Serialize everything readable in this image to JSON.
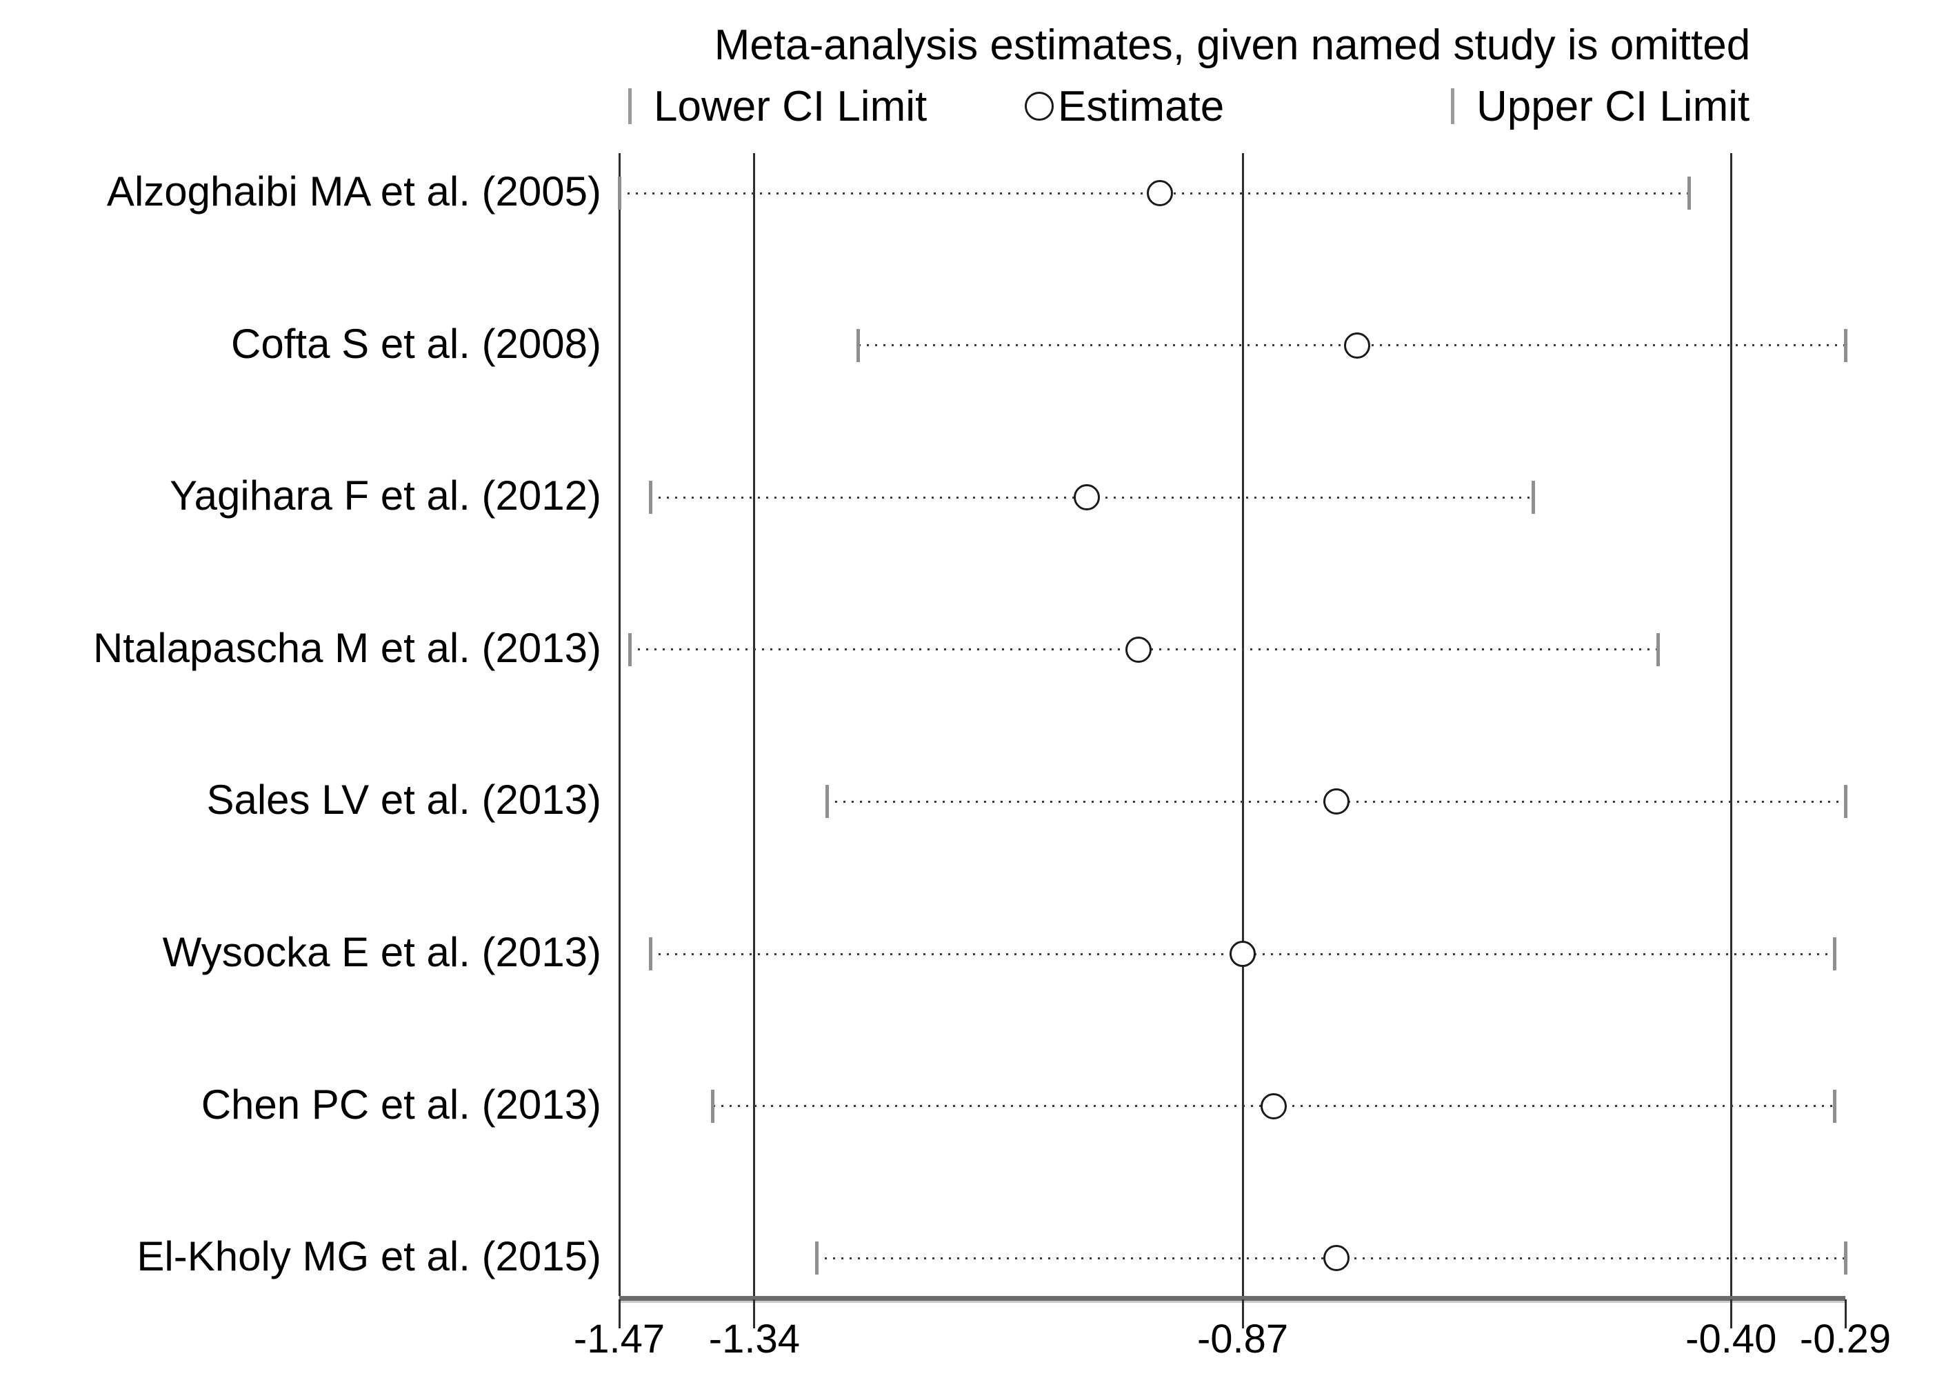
{
  "title": "Meta-analysis estimates, given named study is omitted",
  "legend": {
    "lower_label": "Lower CI Limit",
    "estimate_label": "Estimate",
    "upper_label": "Upper CI Limit"
  },
  "colors": {
    "background": "#ffffff",
    "text": "#000000",
    "grid_line": "#2e2e2e",
    "axis_line": "#6b6b6b",
    "ci_dots": "#3a3a3a",
    "ci_end_tick": "#8f8f8f",
    "estimate_circle_stroke": "#1a1a1a"
  },
  "chart_data": {
    "type": "scatter",
    "subtype": "leave-one-out-forest",
    "title": "Meta-analysis estimates, given named study is omitted",
    "xlabel": "",
    "ylabel": "",
    "grid": "vertical-reference-lines",
    "legend_position": "top",
    "x_axis": {
      "min": -1.47,
      "max": -0.29,
      "tick_values": [
        -1.47,
        -1.34,
        -0.87,
        -0.4,
        -0.29
      ],
      "tick_labels": [
        "-1.47",
        "-1.34",
        "-0.87",
        "-0.40",
        "-0.29"
      ],
      "reference_line_values": [
        -1.34,
        -0.87,
        -0.4
      ]
    },
    "series": [
      {
        "name": "Lower CI Limit",
        "marker": "vertical-bar"
      },
      {
        "name": "Estimate",
        "marker": "open-circle"
      },
      {
        "name": "Upper CI Limit",
        "marker": "vertical-bar"
      }
    ],
    "studies": [
      {
        "label": "Alzoghaibi MA et al. (2005)",
        "lower": -1.47,
        "estimate": -0.95,
        "upper": -0.44
      },
      {
        "label": "Cofta S et al. (2008)",
        "lower": -1.24,
        "estimate": -0.76,
        "upper": -0.29
      },
      {
        "label": "Yagihara F et al. (2012)",
        "lower": -1.44,
        "estimate": -1.02,
        "upper": -0.59
      },
      {
        "label": "Ntalapascha M et al. (2013)",
        "lower": -1.46,
        "estimate": -0.97,
        "upper": -0.47
      },
      {
        "label": "Sales LV et al. (2013)",
        "lower": -1.27,
        "estimate": -0.78,
        "upper": -0.29
      },
      {
        "label": "Wysocka E et al. (2013)",
        "lower": -1.44,
        "estimate": -0.87,
        "upper": -0.3
      },
      {
        "label": "Chen PC et al. (2013)",
        "lower": -1.38,
        "estimate": -0.84,
        "upper": -0.3
      },
      {
        "label": "El-Kholy MG et al. (2015)",
        "lower": -1.28,
        "estimate": -0.78,
        "upper": -0.29
      }
    ]
  }
}
